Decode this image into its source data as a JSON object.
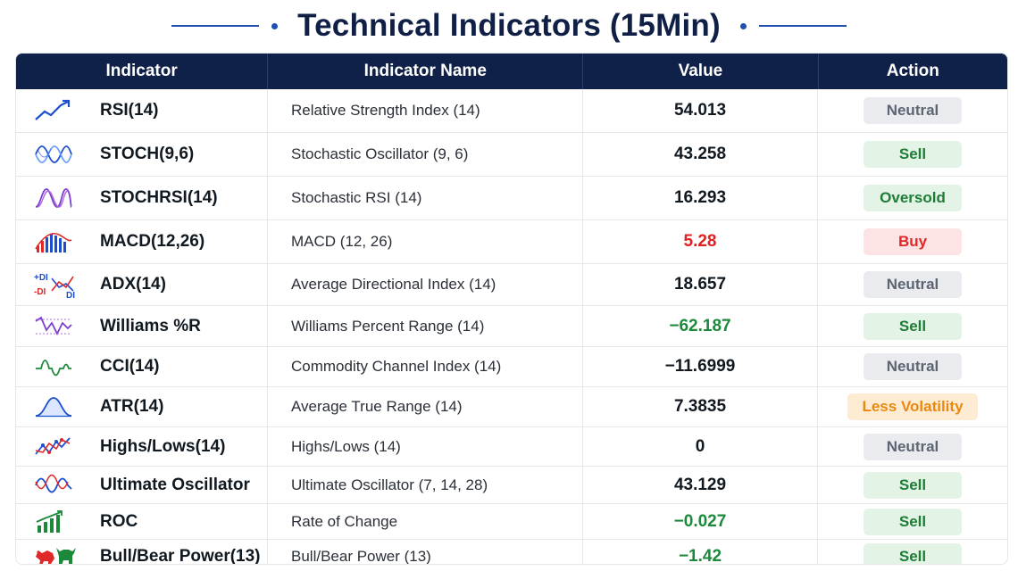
{
  "title": "Technical Indicators (15Min)",
  "headers": {
    "indicator": "Indicator",
    "name": "Indicator Name",
    "value": "Value",
    "action": "Action"
  },
  "colors": {
    "header_bg": "#0f2148",
    "title": "#0f1f45",
    "accent_line": "#1f4fb0",
    "value_red": "#e02020",
    "value_green": "#1a8a3a",
    "neutral": "#5d6572",
    "sell": "#1e7d35",
    "buy": "#e02828",
    "less_volatility": "#e88a10"
  },
  "rows": [
    {
      "indicator": "RSI(14)",
      "name": "Relative Strength Index (14)",
      "value": "54.013",
      "value_color": "default",
      "action": "Neutral",
      "action_type": "neutral",
      "icon": "rising-line-icon"
    },
    {
      "indicator": "STOCH(9,6)",
      "name": "Stochastic Oscillator (9, 6)",
      "value": "43.258",
      "value_color": "default",
      "action": "Sell",
      "action_type": "sell",
      "icon": "stochastic-waves-icon"
    },
    {
      "indicator": "STOCHRSI(14)",
      "name": "Stochastic RSI (14)",
      "value": "16.293",
      "value_color": "default",
      "action": "Oversold",
      "action_type": "sell",
      "icon": "stochrsi-waves-icon"
    },
    {
      "indicator": "MACD(12,26)",
      "name": "MACD (12, 26)",
      "value": "5.28",
      "value_color": "red",
      "action": "Buy",
      "action_type": "buy",
      "icon": "macd-histogram-icon"
    },
    {
      "indicator": "ADX(14)",
      "name": "Average Directional Index (14)",
      "value": "18.657",
      "value_color": "default",
      "action": "Neutral",
      "action_type": "neutral",
      "icon": "adx-di-icon",
      "icon_text": {
        "plus": "+DI",
        "minus": "-DI",
        "di": "DI"
      }
    },
    {
      "indicator": "Williams %R",
      "name": "Williams Percent Range (14)",
      "value": "−62.187",
      "value_color": "green",
      "action": "Sell",
      "action_type": "sell",
      "icon": "williams-wave-icon"
    },
    {
      "indicator": "CCI(14)",
      "name": "Commodity Channel Index (14)",
      "value": "−11.6999",
      "value_color": "default",
      "action": "Neutral",
      "action_type": "neutral",
      "icon": "cci-wave-icon"
    },
    {
      "indicator": "ATR(14)",
      "name": "Average True Range (14)",
      "value": "7.3835",
      "value_color": "default",
      "action": "Less Volatility",
      "action_type": "less",
      "icon": "bell-curve-icon"
    },
    {
      "indicator": "Highs/Lows(14)",
      "name": "Highs/Lows (14)",
      "value": "0",
      "value_color": "default",
      "action": "Neutral",
      "action_type": "neutral",
      "icon": "highs-lows-icon"
    },
    {
      "indicator": "Ultimate Oscillator",
      "name": "Ultimate Oscillator (7, 14, 28)",
      "value": "43.129",
      "value_color": "default",
      "action": "Sell",
      "action_type": "sell",
      "icon": "ultimate-waves-icon"
    },
    {
      "indicator": "ROC",
      "name": "Rate of Change",
      "value": "−0.027",
      "value_color": "green",
      "action": "Sell",
      "action_type": "sell",
      "icon": "roc-bars-icon"
    },
    {
      "indicator": "Bull/Bear Power(13)",
      "name": "Bull/Bear Power (13)",
      "value": "−1.42",
      "value_color": "green",
      "action": "Sell",
      "action_type": "sell",
      "icon": "bull-bear-icon"
    }
  ]
}
